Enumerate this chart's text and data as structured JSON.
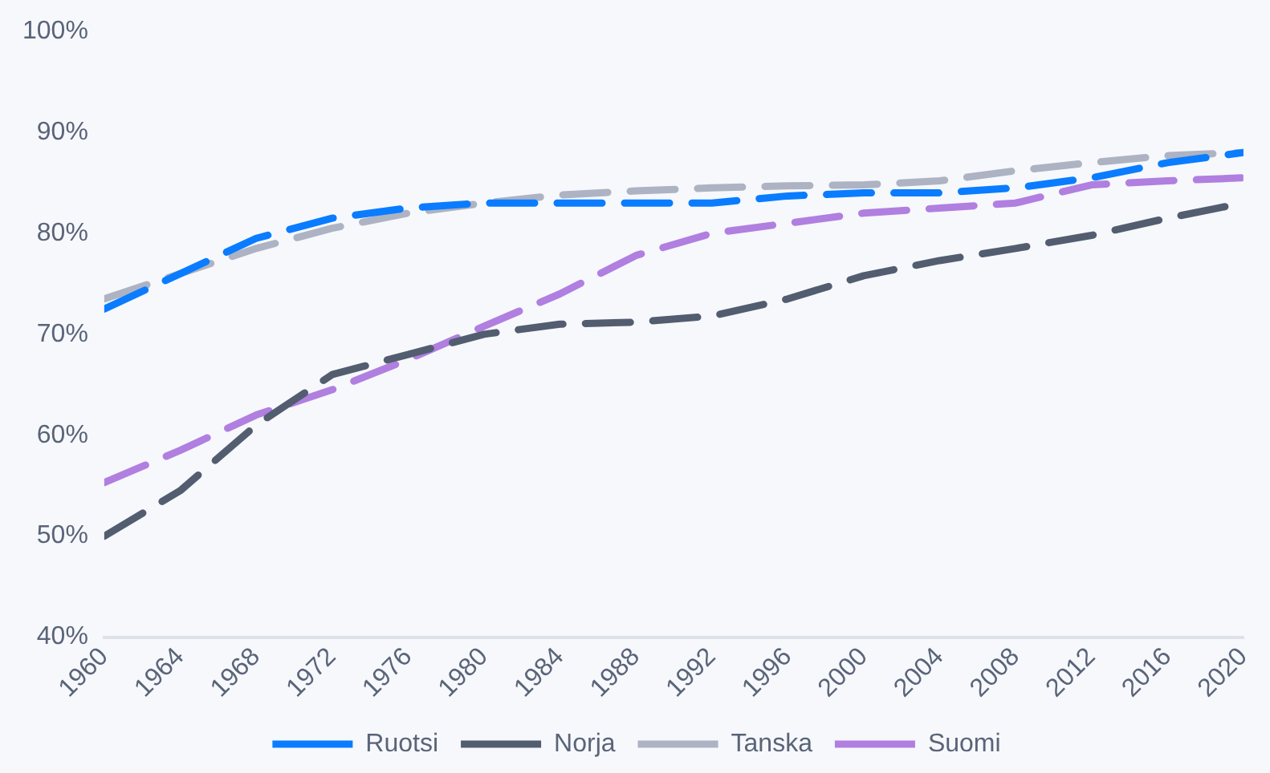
{
  "chart_data": {
    "type": "line",
    "x": [
      1960,
      1964,
      1968,
      1972,
      1976,
      1980,
      1984,
      1988,
      1992,
      1996,
      2000,
      2004,
      2008,
      2012,
      2016,
      2020
    ],
    "series": [
      {
        "name": "Ruotsi",
        "color": "#0a7cff",
        "values": [
          72.5,
          76,
          79.5,
          81.5,
          82.5,
          83,
          83,
          83,
          83,
          83.7,
          84,
          84,
          84.5,
          85.5,
          87,
          88
        ]
      },
      {
        "name": "Norja",
        "color": "#535d70",
        "values": [
          50,
          54.5,
          61,
          66,
          68,
          70,
          71,
          71.2,
          71.8,
          73.5,
          75.8,
          77.3,
          78.5,
          79.8,
          81.5,
          83
        ]
      },
      {
        "name": "Tanska",
        "color": "#adb3c2",
        "values": [
          73.5,
          76,
          78.5,
          80.5,
          82,
          83,
          83.8,
          84.2,
          84.5,
          84.7,
          84.8,
          85.2,
          86.2,
          87,
          87.7,
          88
        ]
      },
      {
        "name": "Suomi",
        "color": "#b07fe0",
        "values": [
          55.3,
          58.5,
          62,
          64.5,
          67.5,
          70.8,
          74,
          77.8,
          80,
          81,
          82,
          82.5,
          83,
          84.8,
          85.2,
          85.5
        ]
      }
    ],
    "xlim": [
      1960,
      2020
    ],
    "xticks": [
      1960,
      1964,
      1968,
      1972,
      1976,
      1980,
      1984,
      1988,
      1992,
      1996,
      2000,
      2004,
      2008,
      2012,
      2016,
      2020
    ],
    "ylim": [
      40,
      100
    ],
    "yticks": [
      {
        "value": 40,
        "label": "40%"
      },
      {
        "value": 50,
        "label": "50%"
      },
      {
        "value": 60,
        "label": "60%"
      },
      {
        "value": 70,
        "label": "70%"
      },
      {
        "value": 80,
        "label": "80%"
      },
      {
        "value": 90,
        "label": "90%"
      },
      {
        "value": 100,
        "label": "100%"
      }
    ],
    "grid": false,
    "legend": "bottom",
    "marker": "none",
    "line_style": "dashed"
  }
}
